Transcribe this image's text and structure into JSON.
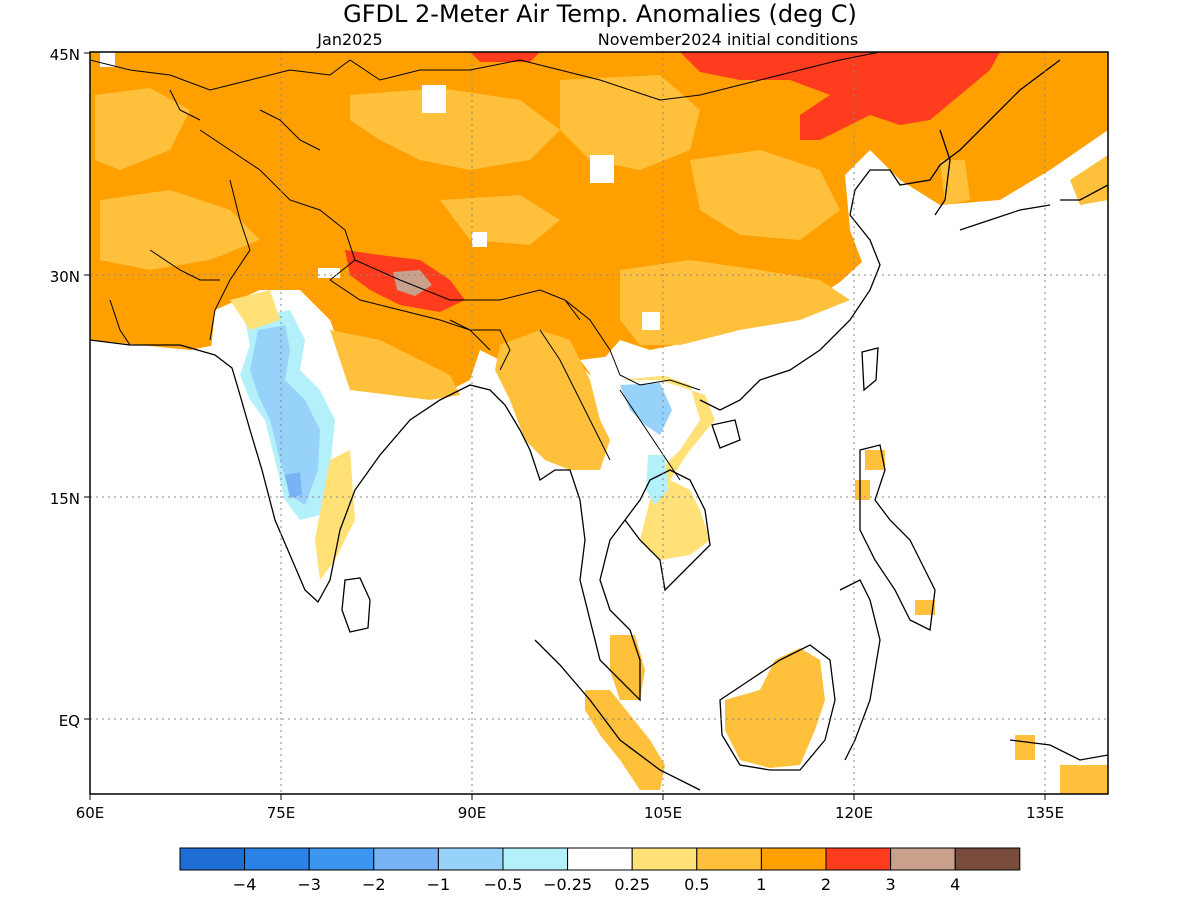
{
  "title": "GFDL 2-Meter Air Temp. Anomalies (deg C)",
  "subtitle_left": "Jan2025",
  "subtitle_right": "November2024 initial conditions",
  "map": {
    "lat_labels": [
      "45N",
      "30N",
      "15N",
      "EQ"
    ],
    "lon_labels": [
      "60E",
      "75E",
      "90E",
      "105E",
      "120E",
      "135E"
    ],
    "lat_range": [
      -5,
      45
    ],
    "lon_range": [
      60,
      140
    ]
  },
  "colorbar": {
    "colors": [
      "#1e6ed6",
      "#2a82e8",
      "#3c96f0",
      "#78b4f5",
      "#96d2fa",
      "#b4f0fa",
      "#ffffff",
      "#ffe178",
      "#ffc03c",
      "#ffa000",
      "#ff3c1e",
      "#c8a08c",
      "#784b3c"
    ],
    "tick_labels": [
      "-4",
      "-3",
      "-2",
      "-1",
      "-0.5",
      "-0.25",
      "0.25",
      "0.5",
      "1",
      "2",
      "3",
      "4"
    ]
  }
}
